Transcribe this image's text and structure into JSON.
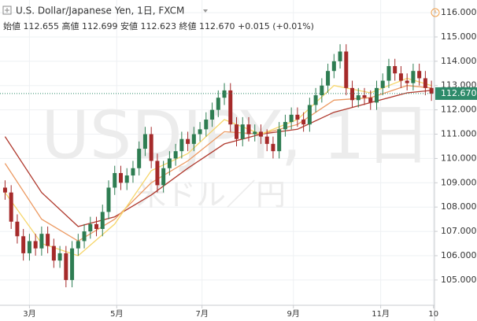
{
  "header": {
    "symbol": "U.S. Dollar/Japanese Yen, 1日, FXCM",
    "ohlc": [
      {
        "label": "始値",
        "value": "112.655"
      },
      {
        "label": "高値",
        "value": "112.699"
      },
      {
        "label": "安値",
        "value": "112.623"
      },
      {
        "label": "終値",
        "value": "112.670"
      }
    ],
    "change": "+0.015 (+0.01%)"
  },
  "watermark": {
    "ticker": "USDJPY, 1日",
    "name": "米ドル／円"
  },
  "chart_data": {
    "type": "candlestick",
    "up_color": "#2e7d52",
    "down_color": "#a52a2a",
    "x": [
      1,
      4,
      7,
      10,
      13,
      16,
      19,
      22,
      25,
      28,
      31,
      34,
      37,
      40,
      43,
      46,
      49,
      52,
      55,
      58,
      61,
      64,
      67,
      70,
      73,
      76,
      79,
      82,
      85,
      88,
      91,
      94,
      97,
      100,
      103,
      106,
      109,
      112,
      115,
      118,
      121,
      124,
      127,
      130,
      133,
      136,
      139,
      142,
      145,
      148,
      151,
      154,
      157,
      160,
      163,
      166,
      169,
      172,
      175,
      178,
      181,
      184,
      187,
      190,
      193,
      196,
      199,
      202,
      205,
      208,
      211
    ],
    "open": [
      108.8,
      108.6,
      107.4,
      106.8,
      106.1,
      106.6,
      106.3,
      106.9,
      106.4,
      105.8,
      106.1,
      105.0,
      106.3,
      106.6,
      107.0,
      107.3,
      107.1,
      107.8,
      108.8,
      109.4,
      109.0,
      109.3,
      109.6,
      110.4,
      111.0,
      109.9,
      108.9,
      109.6,
      110.0,
      110.3,
      110.8,
      110.6,
      111.0,
      111.2,
      111.6,
      112.0,
      112.5,
      112.8,
      111.4,
      110.8,
      111.4,
      111.0,
      111.1,
      110.9,
      110.6,
      110.3,
      111.2,
      111.5,
      111.8,
      111.6,
      111.4,
      112.2,
      112.6,
      113.0,
      113.6,
      114.0,
      114.4,
      112.9,
      112.4,
      112.6,
      112.5,
      112.3,
      112.9,
      113.2,
      113.8,
      113.5,
      113.2,
      113.1,
      113.6,
      113.3,
      112.9
    ],
    "high": [
      109.1,
      108.9,
      107.7,
      107.1,
      106.9,
      106.9,
      107.2,
      107.2,
      106.7,
      106.4,
      106.4,
      106.6,
      106.9,
      107.3,
      107.6,
      107.6,
      108.1,
      109.1,
      109.7,
      109.7,
      109.6,
      109.9,
      110.7,
      111.3,
      111.3,
      110.2,
      109.9,
      110.3,
      110.6,
      111.1,
      111.1,
      111.3,
      111.5,
      111.9,
      112.3,
      112.8,
      113.1,
      113.1,
      111.7,
      111.7,
      111.7,
      111.4,
      111.4,
      111.2,
      110.9,
      111.5,
      111.8,
      112.1,
      112.1,
      111.9,
      112.5,
      112.9,
      113.3,
      113.9,
      114.3,
      114.7,
      114.7,
      113.2,
      112.9,
      112.9,
      112.8,
      113.2,
      113.5,
      114.1,
      114.1,
      113.8,
      113.5,
      113.9,
      113.9,
      113.6,
      113.2
    ],
    "low": [
      108.3,
      107.1,
      106.5,
      105.8,
      105.8,
      106.0,
      106.0,
      106.1,
      105.5,
      105.5,
      104.7,
      104.7,
      106.0,
      106.3,
      106.7,
      106.8,
      106.8,
      107.5,
      108.5,
      108.7,
      108.7,
      109.0,
      109.3,
      110.1,
      109.6,
      108.6,
      108.6,
      109.3,
      109.7,
      110.0,
      110.3,
      110.3,
      110.7,
      110.9,
      111.3,
      111.7,
      112.2,
      111.1,
      110.5,
      110.5,
      110.7,
      110.7,
      110.6,
      110.3,
      110.0,
      110.0,
      110.9,
      111.2,
      111.3,
      111.1,
      111.1,
      111.9,
      112.3,
      112.7,
      113.3,
      113.7,
      112.6,
      112.1,
      112.1,
      112.2,
      112.0,
      112.0,
      112.6,
      112.9,
      113.2,
      112.9,
      112.8,
      112.8,
      113.0,
      112.6,
      112.37
    ],
    "close": [
      108.6,
      107.4,
      106.8,
      106.1,
      106.6,
      106.3,
      106.9,
      106.4,
      105.8,
      106.1,
      105.0,
      106.3,
      106.6,
      107.0,
      107.3,
      107.1,
      107.8,
      108.8,
      109.4,
      109.0,
      109.3,
      109.6,
      110.4,
      111.0,
      109.9,
      108.9,
      109.6,
      110.0,
      110.3,
      110.8,
      110.6,
      111.0,
      111.2,
      111.6,
      112.0,
      112.5,
      112.8,
      111.4,
      110.8,
      111.4,
      111.0,
      111.1,
      110.9,
      110.6,
      110.3,
      111.2,
      111.5,
      111.8,
      111.6,
      111.4,
      112.2,
      112.6,
      113.0,
      113.6,
      114.0,
      114.4,
      112.9,
      112.4,
      112.6,
      112.5,
      112.3,
      112.9,
      113.2,
      113.8,
      113.5,
      113.2,
      113.1,
      113.6,
      113.3,
      112.9,
      112.67
    ],
    "ribbons": {
      "x": [
        1,
        19,
        37,
        55,
        73,
        91,
        109,
        127,
        145,
        163,
        181,
        199,
        211
      ],
      "series": [
        {
          "color": "#b03a2e",
          "values": [
            110.9,
            108.6,
            107.2,
            107.6,
            108.5,
            109.6,
            110.6,
            111.0,
            111.2,
            111.9,
            112.3,
            112.7,
            112.8
          ]
        },
        {
          "color": "#ec9a62",
          "values": [
            109.8,
            107.5,
            106.6,
            107.5,
            109.0,
            109.9,
            111.1,
            111.0,
            111.4,
            112.4,
            112.5,
            113.0,
            112.9
          ]
        },
        {
          "color": "#f6d66b",
          "values": [
            108.6,
            106.5,
            106.0,
            107.3,
            109.5,
            110.2,
            111.6,
            111.0,
            111.6,
            113.0,
            112.7,
            113.3,
            113.0
          ]
        }
      ]
    },
    "last_price": {
      "value": 112.67,
      "label": "112.670"
    },
    "last_color": "#2e8b6a",
    "xlim": [
      -1.5,
      212.5
    ],
    "xticks": [
      {
        "value": 13,
        "label": "3月"
      },
      {
        "value": 56,
        "label": "5月"
      },
      {
        "value": 98,
        "label": "7月"
      },
      {
        "value": 143,
        "label": "9月"
      },
      {
        "value": 186,
        "label": "11月"
      },
      {
        "value": 212,
        "label": "10"
      }
    ],
    "ylim": [
      103.96,
      116.52
    ],
    "yticks": [
      {
        "value": 105,
        "label": "105.000"
      },
      {
        "value": 106,
        "label": "106.000"
      },
      {
        "value": 107,
        "label": "107.000"
      },
      {
        "value": 108,
        "label": "108.000"
      },
      {
        "value": 109,
        "label": "109.000"
      },
      {
        "value": 110,
        "label": "110.000"
      },
      {
        "value": 111,
        "label": "111.000"
      },
      {
        "value": 112,
        "label": "112.000"
      },
      {
        "value": 113,
        "label": "113.000"
      },
      {
        "value": 114,
        "label": "114.000"
      },
      {
        "value": 115,
        "label": "115.000"
      },
      {
        "value": 116,
        "label": "116.000"
      }
    ],
    "grid": true
  }
}
